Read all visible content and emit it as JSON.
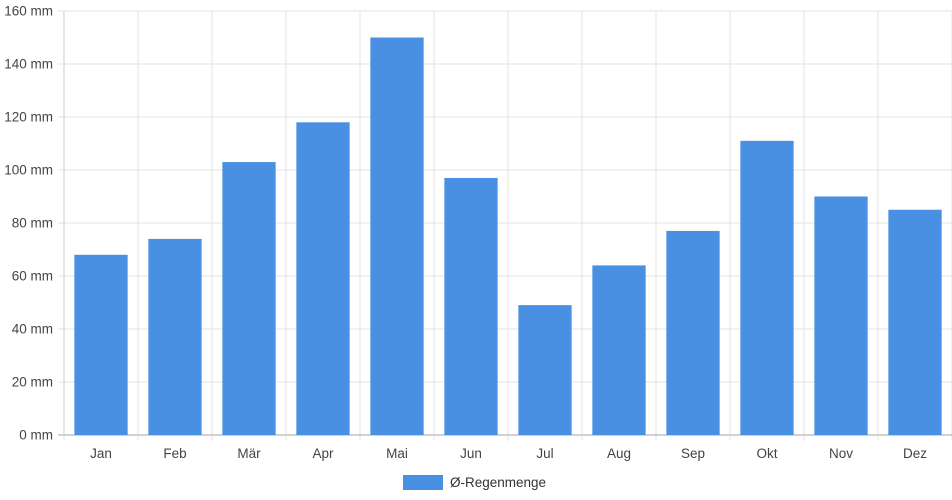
{
  "chart_data": {
    "type": "bar",
    "categories": [
      "Jan",
      "Feb",
      "Mär",
      "Apr",
      "Mai",
      "Jun",
      "Jul",
      "Aug",
      "Sep",
      "Okt",
      "Nov",
      "Dez"
    ],
    "series": [
      {
        "name": "Ø-Regenmenge",
        "values": [
          68,
          74,
          103,
          118,
          150,
          97,
          49,
          64,
          77,
          111,
          90,
          85
        ],
        "color": "#4a90e2"
      }
    ],
    "ylim": [
      0,
      160
    ],
    "yticks": [
      0,
      20,
      40,
      60,
      80,
      100,
      120,
      140,
      160
    ],
    "yunit": "mm",
    "grid": true,
    "legend": "bottom"
  }
}
